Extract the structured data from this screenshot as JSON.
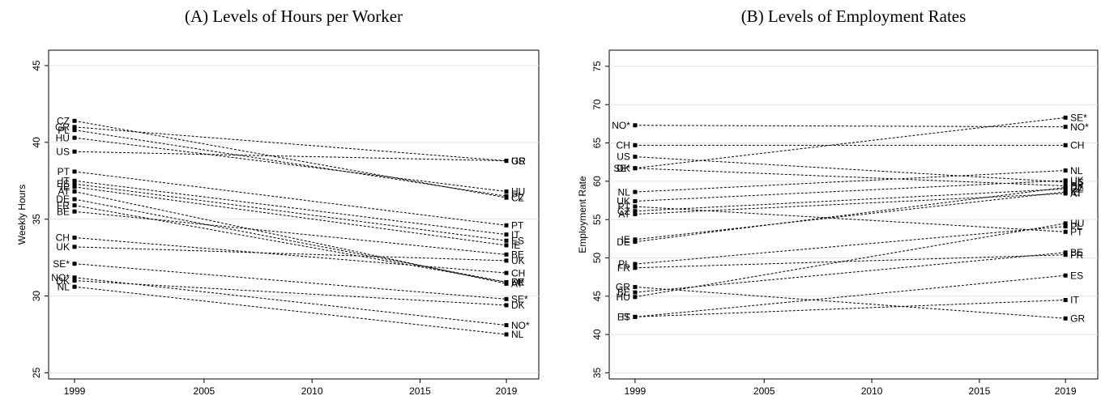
{
  "chart_data": [
    {
      "type": "line",
      "title": "(A) Levels of Hours per Worker",
      "y_label": "Weekly Hours",
      "x": [
        1999,
        2019
      ],
      "xlim": [
        1997.8,
        2020.5
      ],
      "xticks": [
        1999,
        2005,
        2010,
        2015,
        2019
      ],
      "ylim": [
        24.6,
        46
      ],
      "yticks": [
        25,
        30,
        35,
        40,
        45
      ],
      "grid": true,
      "series": [
        {
          "name": "CZ",
          "color": "#000000",
          "values": [
            41.4,
            36.4
          ]
        },
        {
          "name": "GR",
          "color": "#000000",
          "values": [
            41.0,
            38.8
          ]
        },
        {
          "name": "PL",
          "color": "#000000",
          "values": [
            40.8,
            36.5
          ]
        },
        {
          "name": "HU",
          "color": "#000000",
          "values": [
            40.3,
            36.8
          ]
        },
        {
          "name": "US",
          "color": "#000000",
          "values": [
            39.4,
            38.8
          ]
        },
        {
          "name": "PT",
          "color": "#000000",
          "values": [
            38.1,
            34.6
          ]
        },
        {
          "name": "IT",
          "color": "#000000",
          "values": [
            37.5,
            34.0
          ]
        },
        {
          "name": "ES",
          "color": "#000000",
          "values": [
            37.3,
            33.6
          ]
        },
        {
          "name": "IE",
          "color": "#000000",
          "values": [
            37.1,
            33.3
          ]
        },
        {
          "name": "AT",
          "color": "#000000",
          "values": [
            36.8,
            30.8
          ]
        },
        {
          "name": "DE",
          "color": "#000000",
          "values": [
            36.3,
            30.9
          ]
        },
        {
          "name": "FR",
          "color": "#000000",
          "values": [
            35.9,
            30.9
          ]
        },
        {
          "name": "BE",
          "color": "#000000",
          "values": [
            35.5,
            32.7
          ]
        },
        {
          "name": "CH",
          "color": "#000000",
          "values": [
            33.8,
            31.5
          ]
        },
        {
          "name": "UK",
          "color": "#000000",
          "values": [
            33.2,
            32.3
          ]
        },
        {
          "name": "SE*",
          "color": "#000000",
          "values": [
            32.1,
            29.8
          ]
        },
        {
          "name": "NO*",
          "color": "#000000",
          "values": [
            31.2,
            28.1
          ]
        },
        {
          "name": "DK",
          "color": "#000000",
          "values": [
            31.0,
            29.4
          ]
        },
        {
          "name": "NL",
          "color": "#000000",
          "values": [
            30.6,
            27.5
          ]
        }
      ]
    },
    {
      "type": "line",
      "title": "(B) Levels of Employment Rates",
      "y_label": "Employment Rate",
      "x": [
        1999,
        2019
      ],
      "xlim": [
        1997.8,
        2020.5
      ],
      "xticks": [
        1999,
        2005,
        2010,
        2015,
        2019
      ],
      "ylim": [
        34.2,
        77.1
      ],
      "yticks": [
        35,
        40,
        45,
        50,
        55,
        60,
        65,
        70,
        75
      ],
      "grid": true,
      "series": [
        {
          "name": "NO*",
          "color": "#000000",
          "values": [
            67.3,
            67.1
          ]
        },
        {
          "name": "CH",
          "color": "#000000",
          "values": [
            64.7,
            64.7
          ]
        },
        {
          "name": "US",
          "color": "#000000",
          "values": [
            63.2,
            59.9
          ]
        },
        {
          "name": "SE*",
          "color": "#000000",
          "values": [
            61.7,
            68.3
          ]
        },
        {
          "name": "DK",
          "color": "#000000",
          "values": [
            61.7,
            59.4
          ]
        },
        {
          "name": "NL",
          "color": "#000000",
          "values": [
            58.6,
            61.4
          ]
        },
        {
          "name": "UK",
          "color": "#000000",
          "values": [
            57.4,
            60.1
          ]
        },
        {
          "name": "PT",
          "color": "#000000",
          "values": [
            56.7,
            53.4
          ]
        },
        {
          "name": "CZ",
          "color": "#000000",
          "values": [
            56.1,
            59.0
          ]
        },
        {
          "name": "AT",
          "color": "#000000",
          "values": [
            55.7,
            58.4
          ]
        },
        {
          "name": "IE",
          "color": "#000000",
          "values": [
            52.4,
            58.6
          ]
        },
        {
          "name": "DE",
          "color": "#000000",
          "values": [
            52.1,
            59.2
          ]
        },
        {
          "name": "PL",
          "color": "#000000",
          "values": [
            49.2,
            54.1
          ]
        },
        {
          "name": "FR",
          "color": "#000000",
          "values": [
            48.7,
            50.4
          ]
        },
        {
          "name": "GR",
          "color": "#000000",
          "values": [
            46.2,
            42.1
          ]
        },
        {
          "name": "BE",
          "color": "#000000",
          "values": [
            45.5,
            50.7
          ]
        },
        {
          "name": "HU",
          "color": "#000000",
          "values": [
            44.9,
            54.5
          ]
        },
        {
          "name": "ES",
          "color": "#000000",
          "values": [
            42.3,
            47.7
          ]
        },
        {
          "name": "IT",
          "color": "#000000",
          "values": [
            42.3,
            44.5
          ]
        }
      ]
    }
  ]
}
